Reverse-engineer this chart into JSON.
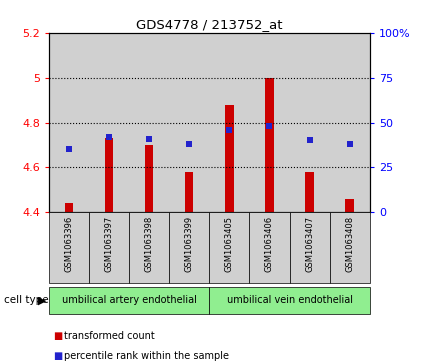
{
  "title": "GDS4778 / 213752_at",
  "samples": [
    "GSM1063396",
    "GSM1063397",
    "GSM1063398",
    "GSM1063399",
    "GSM1063405",
    "GSM1063406",
    "GSM1063407",
    "GSM1063408"
  ],
  "bar_values": [
    4.44,
    4.73,
    4.7,
    4.58,
    4.88,
    5.0,
    4.58,
    4.46
  ],
  "dot_values": [
    35,
    42,
    41,
    38,
    46,
    48,
    40,
    38
  ],
  "bar_bottom": 4.4,
  "ylim_left": [
    4.4,
    5.2
  ],
  "ylim_right": [
    0,
    100
  ],
  "yticks_left": [
    4.4,
    4.6,
    4.8,
    5.0,
    5.2
  ],
  "ytick_labels_left": [
    "4.4",
    "4.6",
    "4.8",
    "5",
    "5.2"
  ],
  "yticks_right": [
    0,
    25,
    50,
    75,
    100
  ],
  "ytick_labels_right": [
    "0",
    "25",
    "50",
    "75",
    "100%"
  ],
  "bar_color": "#cc0000",
  "dot_color": "#2222cc",
  "group1_label": "umbilical artery endothelial",
  "group2_label": "umbilical vein endothelial",
  "cell_type_label": "cell type",
  "legend_bar_label": "transformed count",
  "legend_dot_label": "percentile rank within the sample",
  "bg_color": "#d0d0d0",
  "group_bg": "#90ee90",
  "white": "#ffffff"
}
